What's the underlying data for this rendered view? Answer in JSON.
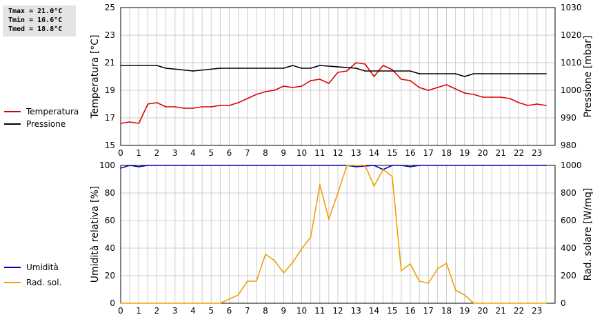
{
  "summary": {
    "tmax": "Tmax = 21.0°C",
    "tmin": "Tmin = 16.6°C",
    "tmed": "Tmed = 18.8°C"
  },
  "colors": {
    "temperature": "#dd0000",
    "pressure": "#000000",
    "humidity": "#0000bb",
    "solar": "#f0a000",
    "grid": "#cccccc"
  },
  "chart_data": [
    {
      "type": "line",
      "x_ticks": [
        "0",
        "1",
        "2",
        "3",
        "4",
        "5",
        "6",
        "7",
        "8",
        "9",
        "10",
        "11",
        "12",
        "13",
        "14",
        "15",
        "16",
        "17",
        "18",
        "19",
        "20",
        "21",
        "22",
        "23"
      ],
      "xlim": [
        0,
        24
      ],
      "ylabel_left": "Temperatura [°C]",
      "ylabel_right": "Pressione [mbar]",
      "ylim_left": [
        15,
        25
      ],
      "ylim_right": [
        980,
        1030
      ],
      "yticks_left": [
        "15",
        "17",
        "19",
        "21",
        "23",
        "25"
      ],
      "yticks_right": [
        "980",
        "990",
        "1000",
        "1010",
        "1020",
        "1030"
      ],
      "grid": true,
      "legend_position": "left",
      "series": [
        {
          "name": "Temperatura",
          "axis": "left",
          "x": [
            0,
            0.5,
            1,
            1.5,
            2,
            2.5,
            3,
            3.5,
            4,
            4.5,
            5,
            5.5,
            6,
            6.5,
            7,
            7.5,
            8,
            8.5,
            9,
            9.5,
            10,
            10.5,
            11,
            11.5,
            12,
            12.5,
            13,
            13.5,
            14,
            14.5,
            15,
            15.5,
            16,
            16.5,
            17,
            17.5,
            18,
            18.5,
            19,
            19.5,
            20,
            20.5,
            21,
            21.5,
            22,
            22.5,
            23,
            23.5
          ],
          "values": [
            16.6,
            16.7,
            16.6,
            18.0,
            18.1,
            17.8,
            17.8,
            17.7,
            17.7,
            17.8,
            17.8,
            17.9,
            17.9,
            18.1,
            18.4,
            18.7,
            18.9,
            19.0,
            19.3,
            19.2,
            19.3,
            19.7,
            19.8,
            19.5,
            20.3,
            20.4,
            21.0,
            20.9,
            20.0,
            20.8,
            20.5,
            19.8,
            19.7,
            19.2,
            19.0,
            19.2,
            19.4,
            19.1,
            18.8,
            18.7,
            18.5,
            18.5,
            18.5,
            18.4,
            18.1,
            17.9,
            18.0,
            17.9
          ]
        },
        {
          "name": "Pressione",
          "axis": "right",
          "x": [
            0,
            2,
            2.5,
            4,
            5.5,
            9,
            9.5,
            10,
            10.5,
            11,
            13,
            13.5,
            16,
            16.5,
            18.5,
            19,
            19.5,
            23.5
          ],
          "values": [
            1009,
            1009,
            1008,
            1007,
            1008,
            1008,
            1009,
            1008,
            1008,
            1009,
            1008,
            1007,
            1007,
            1006,
            1006,
            1005,
            1006,
            1006
          ]
        }
      ]
    },
    {
      "type": "line",
      "x_ticks": [
        "0",
        "1",
        "2",
        "3",
        "4",
        "5",
        "6",
        "7",
        "8",
        "9",
        "10",
        "11",
        "12",
        "13",
        "14",
        "15",
        "16",
        "17",
        "18",
        "19",
        "20",
        "21",
        "22",
        "23"
      ],
      "xlim": [
        0,
        24
      ],
      "ylabel_left": "Umidità relativa [%]",
      "ylabel_right": "Rad. solare [W/mq]",
      "ylim_left": [
        0,
        100
      ],
      "ylim_right": [
        0,
        1000
      ],
      "yticks_left": [
        "0",
        "20",
        "40",
        "60",
        "80",
        "100"
      ],
      "yticks_right": [
        "0",
        "200",
        "400",
        "600",
        "800",
        "1000"
      ],
      "grid": true,
      "legend_position": "left",
      "series": [
        {
          "name": "Umidità",
          "axis": "left",
          "x": [
            0,
            0.5,
            1,
            1.5,
            12.5,
            13,
            14,
            14.5,
            15,
            15.5,
            16,
            16.5,
            23.5
          ],
          "values": [
            98,
            100,
            99,
            100,
            100,
            99,
            100,
            97,
            100,
            100,
            99,
            100,
            100
          ]
        },
        {
          "name": "Rad. sol.",
          "axis": "right",
          "x": [
            0,
            5.5,
            6,
            6.5,
            7,
            7.5,
            8,
            8.5,
            9,
            9.5,
            10,
            10.5,
            11,
            11.5,
            12,
            12.5,
            13,
            13.5,
            14,
            14.5,
            15,
            15.5,
            16,
            16.5,
            17,
            17.5,
            18,
            18.5,
            19,
            19.5,
            20,
            23.5
          ],
          "values": [
            0,
            0,
            30,
            60,
            160,
            160,
            355,
            310,
            220,
            295,
            395,
            480,
            860,
            610,
            800,
            1000,
            1000,
            1000,
            850,
            970,
            920,
            235,
            285,
            160,
            145,
            250,
            290,
            95,
            60,
            0,
            0,
            0
          ]
        }
      ]
    }
  ]
}
